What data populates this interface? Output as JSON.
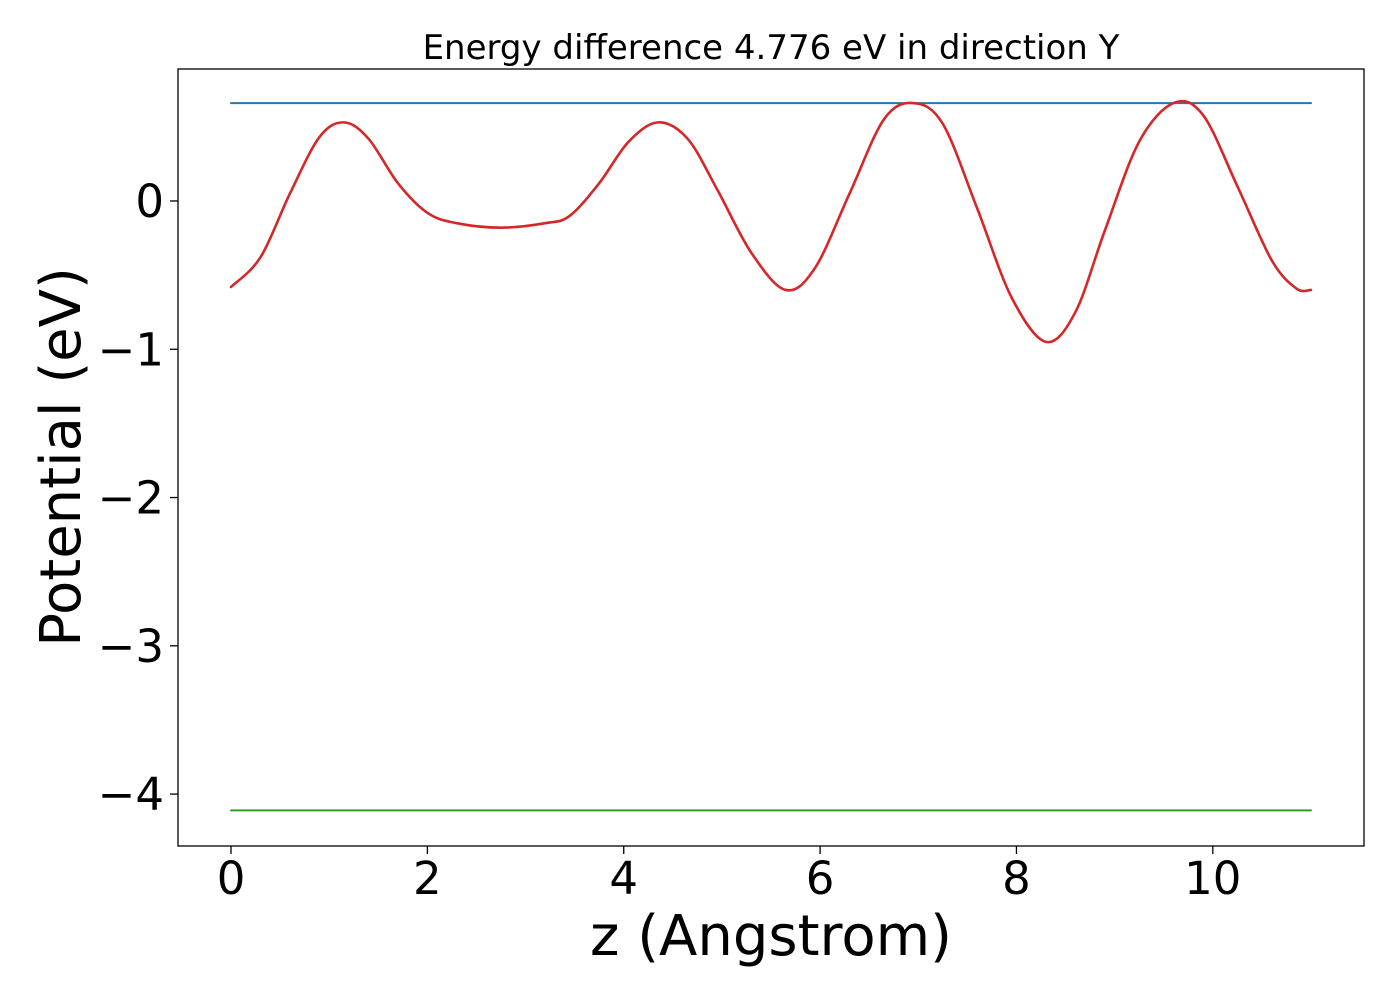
{
  "chart_data": {
    "type": "line",
    "title": "Energy difference 4.776 eV in direction Y",
    "xlabel": "z (Angstrom)",
    "ylabel": "Potential (eV)",
    "xlim": [
      -0.54,
      11.54
    ],
    "ylim": [
      -4.35,
      0.89
    ],
    "grid": false,
    "x_ticks": [
      0,
      2,
      4,
      6,
      8,
      10
    ],
    "x_tick_labels": [
      "0",
      "2",
      "4",
      "6",
      "8",
      "10"
    ],
    "y_ticks": [
      0,
      -1,
      -2,
      -3,
      -4
    ],
    "y_tick_labels": [
      "0",
      "−1",
      "−2",
      "−3",
      "−4"
    ],
    "series": [
      {
        "color": "#d62728",
        "x": [
          0,
          0.3,
          0.6,
          0.9,
          1.15,
          1.4,
          1.7,
          2.0,
          2.3,
          2.75,
          3.2,
          3.45,
          3.75,
          4.05,
          4.35,
          4.65,
          4.95,
          5.3,
          5.65,
          5.95,
          6.3,
          6.65,
          6.95,
          7.25,
          7.6,
          7.95,
          8.3,
          8.6,
          8.9,
          9.25,
          9.6,
          9.9,
          10.25,
          10.6,
          10.85,
          11.0
        ],
        "y": [
          -0.58,
          -0.38,
          0.05,
          0.43,
          0.53,
          0.42,
          0.12,
          -0.08,
          -0.15,
          -0.18,
          -0.15,
          -0.1,
          0.12,
          0.4,
          0.53,
          0.42,
          0.08,
          -0.35,
          -0.6,
          -0.45,
          0.05,
          0.55,
          0.66,
          0.52,
          -0.05,
          -0.65,
          -0.95,
          -0.75,
          -0.2,
          0.4,
          0.66,
          0.58,
          0.1,
          -0.4,
          -0.59,
          -0.6
        ]
      },
      {
        "color": "#1f77b4",
        "x": [
          0,
          11.0
        ],
        "y": [
          0.66,
          0.66
        ]
      },
      {
        "color": "#2ca02c",
        "x": [
          0,
          11.0
        ],
        "y": [
          -4.11,
          -4.11
        ]
      }
    ]
  }
}
